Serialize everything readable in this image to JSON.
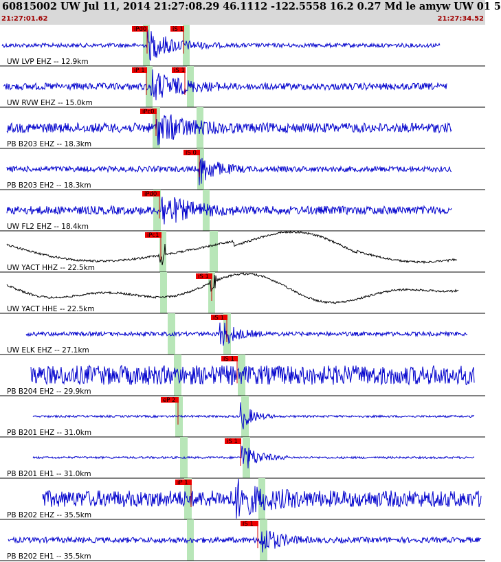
{
  "header": {
    "title": "60815002 UW Jul 11, 2014 21:27:08.29   46.1112 -122.5558 16.2 0.27 Md le amyw UW 01   5",
    "time_start": "21:27:01.62",
    "time_end": "21:27:34.52"
  },
  "colors": {
    "header_bg": "#d9d9d9",
    "trace_short_period": "#0000cc",
    "trace_broadband": "#000000",
    "pick_box": "#ee0000",
    "pick_window": "#b8e6b8",
    "time_text": "#a00000"
  },
  "traces": [
    {
      "label": "UW LVP EHZ -- 12.9km",
      "kind": "sp",
      "picks": [
        "iPd0",
        "iS 1"
      ]
    },
    {
      "label": "UW RVW EHZ -- 15.0km",
      "kind": "sp",
      "picks": [
        "iP 1",
        "iS 1"
      ]
    },
    {
      "label": "PB B203 EHZ -- 18.3km",
      "kind": "sp",
      "picks": [
        "iPc0"
      ]
    },
    {
      "label": "PB B203 EH2 -- 18.3km",
      "kind": "sp",
      "picks": [
        "iS 0"
      ]
    },
    {
      "label": "UW FL2 EHZ -- 18.4km",
      "kind": "sp",
      "picks": [
        "iPd0"
      ]
    },
    {
      "label": "UW YACT HHZ -- 22.5km",
      "kind": "bb",
      "picks": [
        "iPc1"
      ]
    },
    {
      "label": "UW YACT HHE -- 22.5km",
      "kind": "bb",
      "picks": [
        "iS 1"
      ]
    },
    {
      "label": "UW ELK EHZ -- 27.1km",
      "kind": "sp",
      "picks": [
        "iS 1"
      ]
    },
    {
      "label": "PB B204 EH2 -- 29.9km",
      "kind": "sp",
      "picks": [
        "iS 1"
      ]
    },
    {
      "label": "PB B201 EHZ -- 31.0km",
      "kind": "sp",
      "picks": [
        "eP 2"
      ]
    },
    {
      "label": "PB B201 EH1 -- 31.0km",
      "kind": "sp",
      "picks": [
        "iS 1"
      ]
    },
    {
      "label": "PB B202 EHZ -- 35.5km",
      "kind": "sp",
      "picks": [
        "iP 1"
      ]
    },
    {
      "label": "PB B202 EH1 -- 35.5km",
      "kind": "sp",
      "picks": [
        "iS 1"
      ]
    }
  ]
}
